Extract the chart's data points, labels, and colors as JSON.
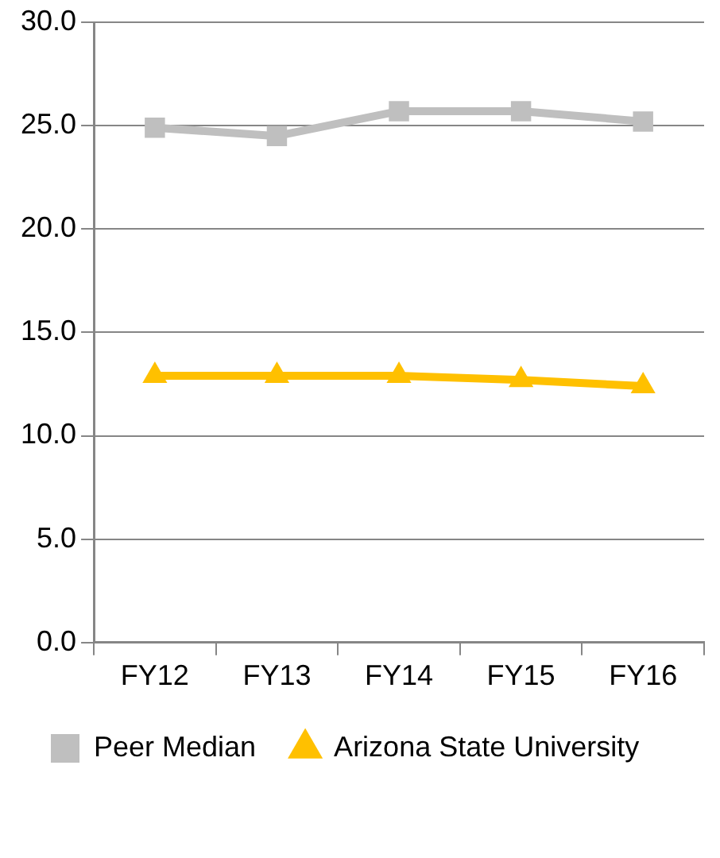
{
  "chart_data": {
    "type": "line",
    "categories": [
      "FY12",
      "FY13",
      "FY14",
      "FY15",
      "FY16"
    ],
    "series": [
      {
        "name": "Peer Median",
        "color": "#bfbfbf",
        "values": [
          24.9,
          24.5,
          25.7,
          25.7,
          25.2
        ],
        "marker": "square"
      },
      {
        "name": "Arizona State University",
        "color": "#ffc000",
        "values": [
          12.9,
          12.9,
          12.9,
          12.7,
          12.4
        ],
        "marker": "triangle"
      }
    ],
    "ylim": [
      0,
      30
    ],
    "yticks": [
      {
        "value": 0,
        "label": "0.0"
      },
      {
        "value": 5,
        "label": "5.0"
      },
      {
        "value": 10,
        "label": "10.0"
      },
      {
        "value": 15,
        "label": "15.0"
      },
      {
        "value": 20,
        "label": "20.0"
      },
      {
        "value": 25,
        "label": "25.0"
      },
      {
        "value": 30,
        "label": "30.0"
      }
    ],
    "grid": "y",
    "legend": "bottom",
    "line_style": "solid"
  }
}
